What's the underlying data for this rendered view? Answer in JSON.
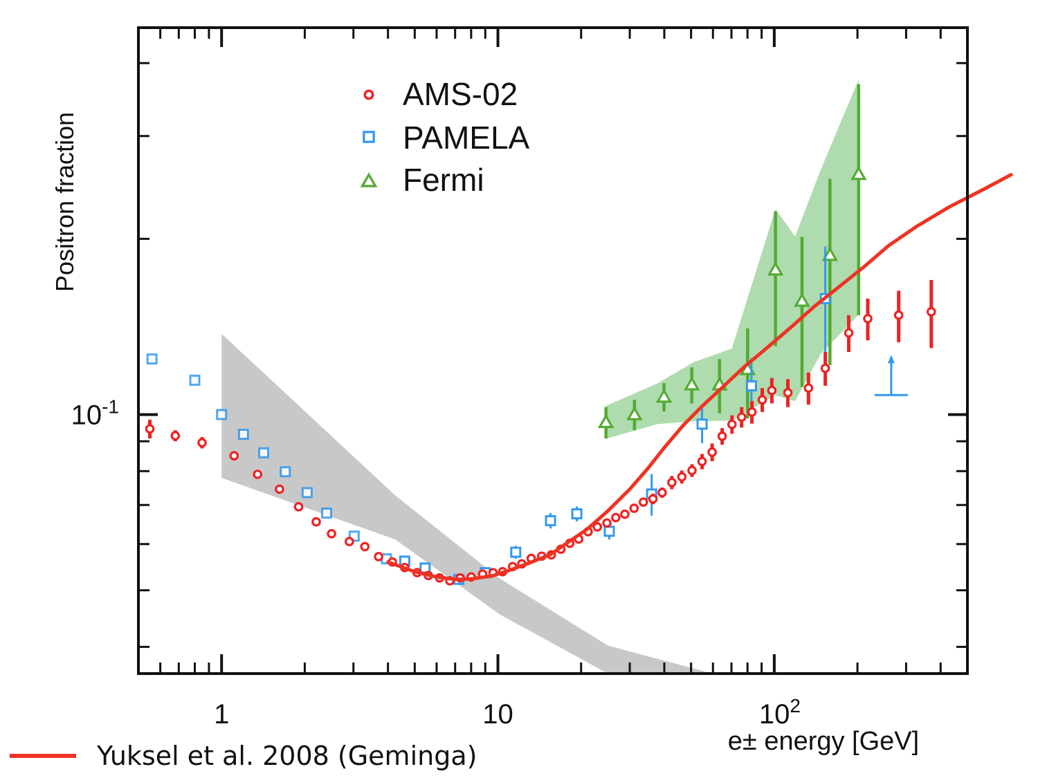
{
  "chart_data": {
    "type": "scatter",
    "xlabel": "e± energy [GeV]",
    "ylabel": "Positron fraction",
    "xscale": "log",
    "yscale": "log",
    "xlim": [
      0.5,
      500
    ],
    "ylim": [
      0.036,
      0.46
    ],
    "grid": false,
    "legend_position": "top-left",
    "x_ticks": [
      {
        "value": 1,
        "label": "1"
      },
      {
        "value": 10,
        "label": "10"
      },
      {
        "value": 100,
        "label": "10",
        "sup": "2"
      }
    ],
    "y_ticks": [
      {
        "value": 0.1,
        "label": "10",
        "sup": "-1"
      }
    ],
    "series": [
      {
        "name": "AMS-02",
        "marker": "circle",
        "color": "#ee2222",
        "points": [
          {
            "x": 0.55,
            "y": 0.0945,
            "err": [
              0.0035,
              0.0035
            ]
          },
          {
            "x": 0.68,
            "y": 0.092,
            "err": [
              0.002,
              0.002
            ]
          },
          {
            "x": 0.85,
            "y": 0.0895,
            "err": [
              0.002,
              0.002
            ]
          },
          {
            "x": 1.11,
            "y": 0.085
          },
          {
            "x": 1.35,
            "y": 0.079
          },
          {
            "x": 1.62,
            "y": 0.0745
          },
          {
            "x": 1.9,
            "y": 0.0695
          },
          {
            "x": 2.2,
            "y": 0.0655
          },
          {
            "x": 2.5,
            "y": 0.0625
          },
          {
            "x": 2.9,
            "y": 0.0606
          },
          {
            "x": 3.3,
            "y": 0.0594
          },
          {
            "x": 3.7,
            "y": 0.0571
          },
          {
            "x": 4.15,
            "y": 0.0559
          },
          {
            "x": 4.6,
            "y": 0.0547
          },
          {
            "x": 5.1,
            "y": 0.0536
          },
          {
            "x": 5.6,
            "y": 0.053
          },
          {
            "x": 6.15,
            "y": 0.0525
          },
          {
            "x": 6.7,
            "y": 0.0519
          },
          {
            "x": 7.3,
            "y": 0.0525
          },
          {
            "x": 8.0,
            "y": 0.0527
          },
          {
            "x": 8.8,
            "y": 0.0533
          },
          {
            "x": 9.6,
            "y": 0.0536
          },
          {
            "x": 10.4,
            "y": 0.0538
          },
          {
            "x": 11.3,
            "y": 0.0549
          },
          {
            "x": 12.2,
            "y": 0.0555
          },
          {
            "x": 13.2,
            "y": 0.0567
          },
          {
            "x": 14.4,
            "y": 0.0572
          },
          {
            "x": 15.6,
            "y": 0.0575
          },
          {
            "x": 16.9,
            "y": 0.0588
          },
          {
            "x": 18.2,
            "y": 0.0602
          },
          {
            "x": 19.6,
            "y": 0.0612
          },
          {
            "x": 21.2,
            "y": 0.063
          },
          {
            "x": 22.9,
            "y": 0.0642
          },
          {
            "x": 24.8,
            "y": 0.0652
          },
          {
            "x": 26.7,
            "y": 0.0666
          },
          {
            "x": 28.8,
            "y": 0.0675
          },
          {
            "x": 31.1,
            "y": 0.0691
          },
          {
            "x": 33.6,
            "y": 0.0708
          },
          {
            "x": 36.4,
            "y": 0.0717,
            "err": [
              0.0015,
              0.0015
            ]
          },
          {
            "x": 39.3,
            "y": 0.0735,
            "err": [
              0.0015,
              0.0015
            ]
          },
          {
            "x": 42.6,
            "y": 0.0765,
            "err": [
              0.002,
              0.002
            ]
          },
          {
            "x": 46.3,
            "y": 0.0782,
            "err": [
              0.002,
              0.002
            ]
          },
          {
            "x": 50.4,
            "y": 0.0802,
            "err": [
              0.002,
              0.002
            ]
          },
          {
            "x": 54.8,
            "y": 0.0831,
            "err": [
              0.0025,
              0.0025
            ]
          },
          {
            "x": 59.6,
            "y": 0.0862,
            "err": [
              0.003,
              0.003
            ]
          },
          {
            "x": 64.8,
            "y": 0.0918,
            "err": [
              0.003,
              0.003
            ]
          },
          {
            "x": 70.3,
            "y": 0.0962,
            "err": [
              0.0035,
              0.0035
            ]
          },
          {
            "x": 76.2,
            "y": 0.099,
            "err": [
              0.004,
              0.004
            ]
          },
          {
            "x": 83.0,
            "y": 0.101,
            "err": [
              0.0045,
              0.0045
            ]
          },
          {
            "x": 90.5,
            "y": 0.106,
            "err": [
              0.005,
              0.005
            ]
          },
          {
            "x": 98.0,
            "y": 0.11,
            "err": [
              0.0055,
              0.0055
            ]
          },
          {
            "x": 112,
            "y": 0.109,
            "err": [
              0.006,
              0.006
            ]
          },
          {
            "x": 133,
            "y": 0.111,
            "err": [
              0.007,
              0.007
            ]
          },
          {
            "x": 153,
            "y": 0.12,
            "err": [
              0.008,
              0.008
            ]
          },
          {
            "x": 186,
            "y": 0.138,
            "err": [
              0.01,
              0.01
            ]
          },
          {
            "x": 218,
            "y": 0.146,
            "err": [
              0.012,
              0.012
            ]
          },
          {
            "x": 282,
            "y": 0.148,
            "err": [
              0.015,
              0.015
            ]
          },
          {
            "x": 370,
            "y": 0.15,
            "err": [
              0.02,
              0.02
            ]
          }
        ]
      },
      {
        "name": "PAMELA",
        "marker": "square",
        "color": "#3399ee",
        "points": [
          {
            "x": 0.56,
            "y": 0.1245
          },
          {
            "x": 0.8,
            "y": 0.1145
          },
          {
            "x": 1.0,
            "y": 0.1
          },
          {
            "x": 1.2,
            "y": 0.0925
          },
          {
            "x": 1.42,
            "y": 0.086
          },
          {
            "x": 1.7,
            "y": 0.0798
          },
          {
            "x": 2.04,
            "y": 0.0735
          },
          {
            "x": 2.4,
            "y": 0.0678
          },
          {
            "x": 3.02,
            "y": 0.0619
          },
          {
            "x": 3.95,
            "y": 0.0566
          },
          {
            "x": 4.6,
            "y": 0.0561
          },
          {
            "x": 5.45,
            "y": 0.0546
          },
          {
            "x": 7.22,
            "y": 0.0522
          },
          {
            "x": 9.0,
            "y": 0.0536,
            "err": [
              0.001,
              0.001
            ]
          },
          {
            "x": 11.6,
            "y": 0.0581,
            "err": [
              0.0015,
              0.0015
            ]
          },
          {
            "x": 15.5,
            "y": 0.0658,
            "err": [
              0.002,
              0.002
            ]
          },
          {
            "x": 19.3,
            "y": 0.0676,
            "err": [
              0.002,
              0.002
            ]
          },
          {
            "x": 25.3,
            "y": 0.0631,
            "err": [
              0.002,
              0.002
            ]
          },
          {
            "x": 36.0,
            "y": 0.0731,
            "err": [
              0.006,
              0.006
            ]
          },
          {
            "x": 54.8,
            "y": 0.0963,
            "err": [
              0.007,
              0.007
            ]
          },
          {
            "x": 82.7,
            "y": 0.112,
            "err": [
              0.013,
              0.013
            ]
          },
          {
            "x": 153,
            "y": 0.158,
            "err": [
              0.036,
              0.036
            ]
          }
        ],
        "upper_limit": {
          "x": 265,
          "y": 0.108
        }
      },
      {
        "name": "Fermi",
        "marker": "triangle",
        "color": "#55aa33",
        "points": [
          {
            "x": 24.6,
            "y": 0.097,
            "err": [
              0.006,
              0.006
            ]
          },
          {
            "x": 31.2,
            "y": 0.1,
            "err": [
              0.006,
              0.006
            ]
          },
          {
            "x": 39.9,
            "y": 0.1072,
            "err": [
              0.006,
              0.006
            ]
          },
          {
            "x": 50.3,
            "y": 0.1125,
            "err": [
              0.008,
              0.008
            ]
          },
          {
            "x": 63.4,
            "y": 0.1125,
            "err": [
              0.012,
              0.012
            ]
          },
          {
            "x": 80.1,
            "y": 0.1195,
            "err": [
              0.021,
              0.021
            ]
          },
          {
            "x": 101,
            "y": 0.177,
            "err": [
              0.046,
              0.046
            ]
          },
          {
            "x": 126,
            "y": 0.1565,
            "err": [
              0.045,
              0.045
            ]
          },
          {
            "x": 159,
            "y": 0.1875,
            "err": [
              0.066,
              0.066
            ]
          },
          {
            "x": 202,
            "y": 0.258,
            "err": [
              0.11,
              0.11
            ]
          }
        ]
      }
    ],
    "bands": [
      {
        "color": "#c8c8c8",
        "upper": [
          [
            1.0,
            0.1375
          ],
          [
            4.25,
            0.0727
          ],
          [
            10.2,
            0.0523
          ],
          [
            25,
            0.0402
          ],
          [
            60,
            0.036
          ]
        ],
        "lower": [
          [
            1.0,
            0.0779
          ],
          [
            4.25,
            0.0611
          ],
          [
            10.2,
            0.0454
          ],
          [
            25,
            0.036
          ]
        ]
      },
      {
        "color": "#a0d6a0",
        "upper": [
          [
            24.6,
            0.1035
          ],
          [
            37.8,
            0.1131
          ],
          [
            51.1,
            0.123
          ],
          [
            70.2,
            0.1297
          ],
          [
            101,
            0.2249
          ],
          [
            119,
            0.2019
          ],
          [
            147,
            0.2621
          ],
          [
            202,
            0.3749
          ]
        ],
        "lower": [
          [
            24.6,
            0.0909
          ],
          [
            37.8,
            0.0963
          ],
          [
            51.1,
            0.0974
          ],
          [
            70.2,
            0.0976
          ],
          [
            101,
            0.1079
          ],
          [
            119,
            0.1054
          ],
          [
            147,
            0.1268
          ],
          [
            202,
            0.1483
          ]
        ]
      }
    ],
    "model": {
      "name": "Yuksel et al. 2008 (Geminga)",
      "color": "#ee3322",
      "points": [
        [
          4.0,
          0.0559
        ],
        [
          5.0,
          0.0538
        ],
        [
          6.0,
          0.0527
        ],
        [
          7.0,
          0.0522
        ],
        [
          8.0,
          0.0523
        ],
        [
          9.5,
          0.0529
        ],
        [
          11,
          0.0541
        ],
        [
          13,
          0.0557
        ],
        [
          15.5,
          0.0576
        ],
        [
          18,
          0.0605
        ],
        [
          21,
          0.0636
        ],
        [
          25,
          0.0684
        ],
        [
          30,
          0.0745
        ],
        [
          35,
          0.081
        ],
        [
          40,
          0.0878
        ],
        [
          47,
          0.096
        ],
        [
          55,
          0.1035
        ],
        [
          65,
          0.1114
        ],
        [
          78,
          0.1208
        ],
        [
          95,
          0.1306
        ],
        [
          115,
          0.1411
        ],
        [
          140,
          0.1533
        ],
        [
          170,
          0.1649
        ],
        [
          210,
          0.1787
        ],
        [
          260,
          0.1949
        ],
        [
          330,
          0.2105
        ],
        [
          430,
          0.2268
        ],
        [
          570,
          0.2429
        ],
        [
          720,
          0.2576
        ]
      ]
    }
  },
  "legend": {
    "items": [
      {
        "label": "AMS-02"
      },
      {
        "label": "PAMELA"
      },
      {
        "label": "Fermi"
      }
    ]
  },
  "caption": {
    "text": "Yuksel et al. 2008 (Geminga)",
    "color": "#ee3322"
  }
}
